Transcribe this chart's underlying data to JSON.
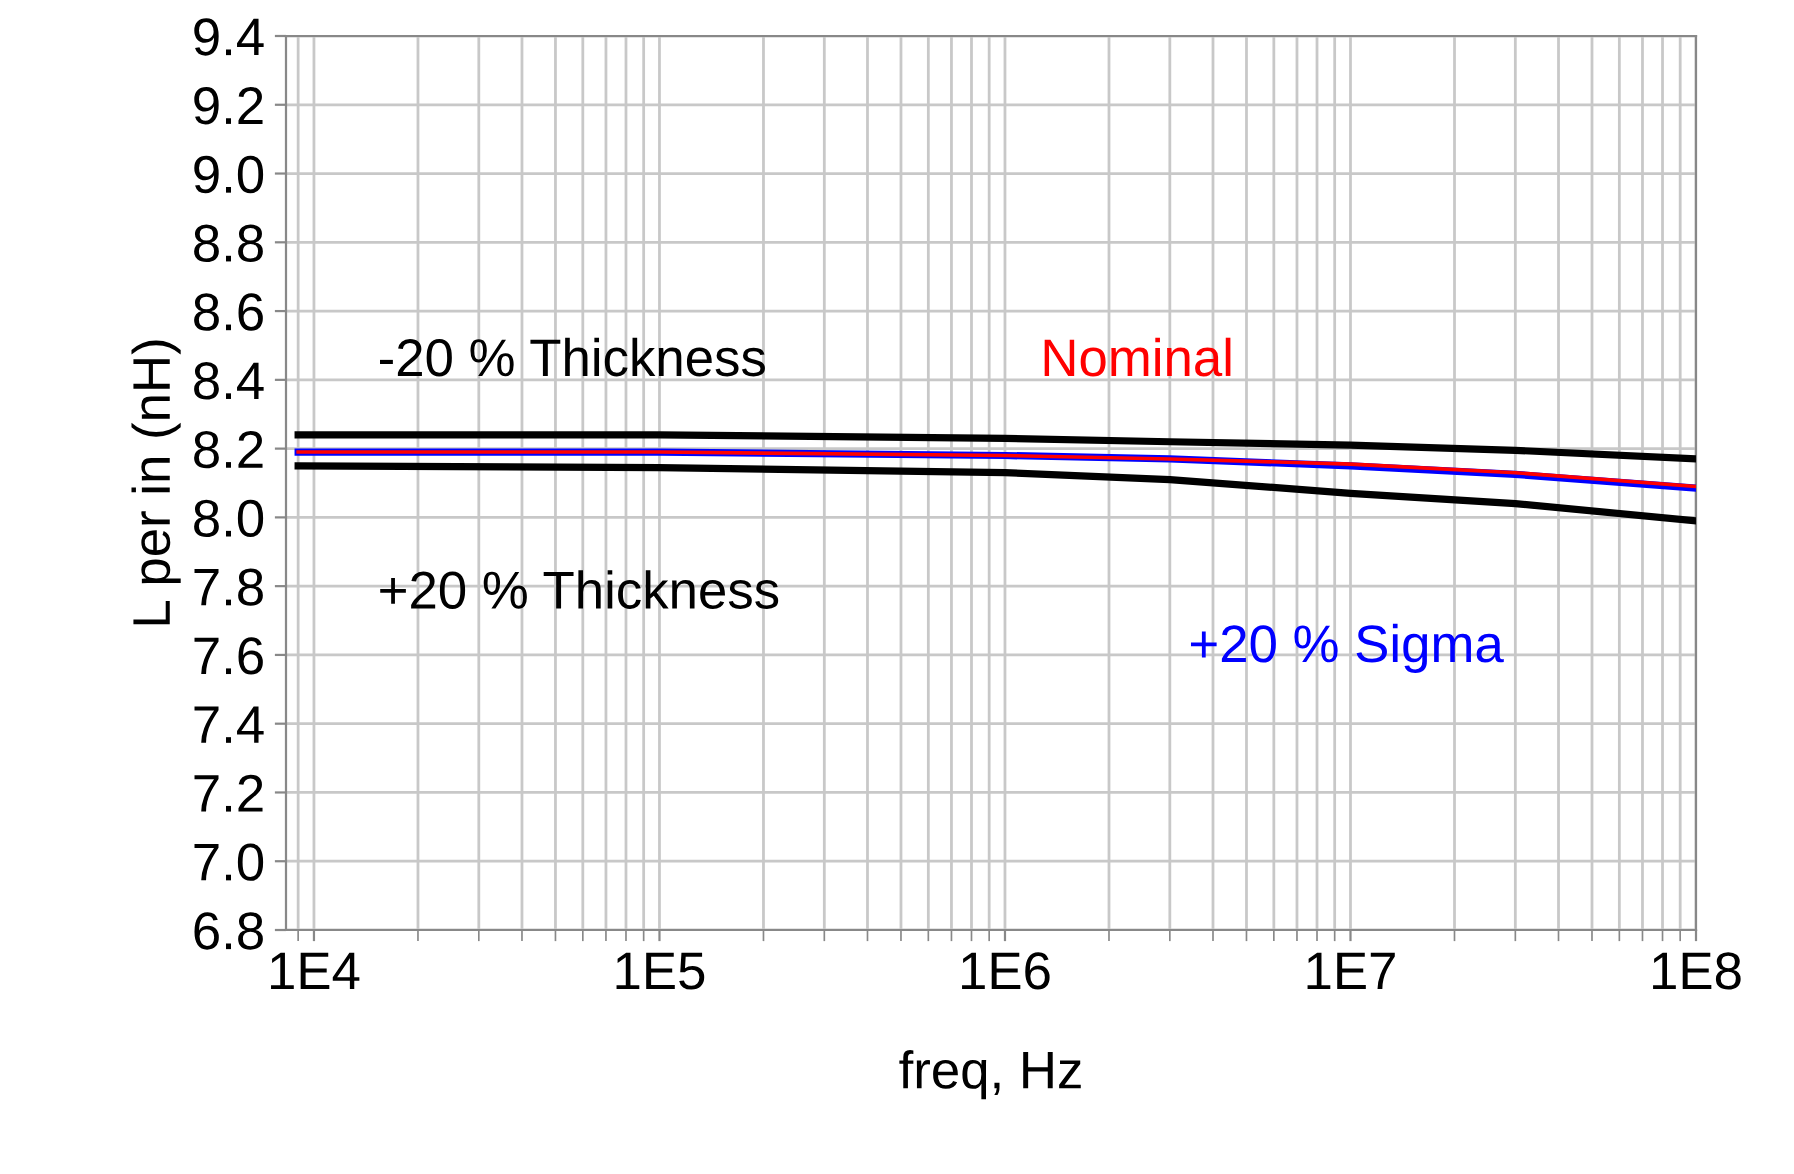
{
  "chart_data": {
    "type": "line",
    "xlabel": "freq, Hz",
    "ylabel": "L per in (nH)",
    "log": "x",
    "x": [
      9000,
      100000,
      1000000,
      3000000,
      10000000,
      30000000,
      100000000
    ],
    "series": [
      {
        "name": "-20 % Thickness",
        "color": "#000000",
        "values": [
          8.24,
          8.24,
          8.23,
          8.22,
          8.21,
          8.195,
          8.17
        ]
      },
      {
        "name": "Nominal",
        "color": "#ff0000",
        "values": [
          8.19,
          8.19,
          8.18,
          8.17,
          8.155,
          8.13,
          8.09
        ]
      },
      {
        "name": "+20 % Sigma",
        "color": "#0000ff",
        "values": [
          8.19,
          8.19,
          8.18,
          8.17,
          8.15,
          8.125,
          8.085
        ]
      },
      {
        "name": "+20 % Thickness",
        "color": "#000000",
        "values": [
          8.15,
          8.145,
          8.13,
          8.11,
          8.07,
          8.04,
          7.99
        ]
      }
    ],
    "xlim": [
      8300,
      100000000
    ],
    "xticks": [
      {
        "value": 10000,
        "label": "1E4"
      },
      {
        "value": 100000,
        "label": "1E5"
      },
      {
        "value": 1000000,
        "label": "1E6"
      },
      {
        "value": 10000000,
        "label": "1E7"
      },
      {
        "value": 100000000,
        "label": "1E8"
      }
    ],
    "ylim": [
      6.8,
      9.4
    ],
    "yticks": [
      {
        "value": 6.8,
        "label": "6.8"
      },
      {
        "value": 7.0,
        "label": "7.0"
      },
      {
        "value": 7.2,
        "label": "7.2"
      },
      {
        "value": 7.4,
        "label": "7.4"
      },
      {
        "value": 7.6,
        "label": "7.6"
      },
      {
        "value": 7.8,
        "label": "7.8"
      },
      {
        "value": 8.0,
        "label": "8.0"
      },
      {
        "value": 8.2,
        "label": "8.2"
      },
      {
        "value": 8.4,
        "label": "8.4"
      },
      {
        "value": 8.6,
        "label": "8.6"
      },
      {
        "value": 8.8,
        "label": "8.8"
      },
      {
        "value": 9.0,
        "label": "9.0"
      },
      {
        "value": 9.2,
        "label": "9.2"
      },
      {
        "value": 9.4,
        "label": "9.4"
      }
    ],
    "grid": true,
    "legend": false
  }
}
